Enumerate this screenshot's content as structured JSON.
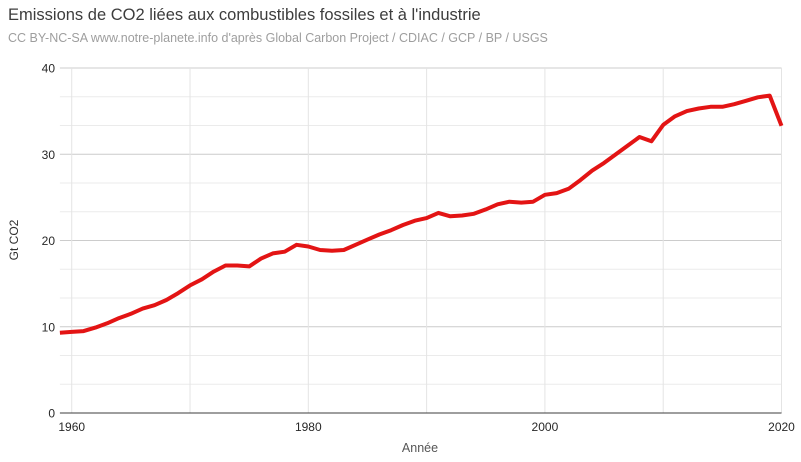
{
  "chart_data": {
    "type": "line",
    "title": "Emissions de CO2 liées aux combustibles fossiles et à l'industrie",
    "subtitle": "CC BY-NC-SA www.notre-planete.info d'après Global Carbon Project / CDIAC / GCP / BP / USGS",
    "xlabel": "Année",
    "ylabel": "Gt CO2",
    "xlim": [
      1959,
      2020
    ],
    "ylim": [
      0,
      40
    ],
    "yticks": [
      0,
      10,
      20,
      30,
      40
    ],
    "xticks": [
      1960,
      1980,
      2000,
      2020
    ],
    "x_gridlines": [
      1960,
      1970,
      1980,
      1990,
      2000,
      2010,
      2020
    ],
    "y_minor_divisions": 12,
    "grid": "on",
    "legend_position": "none",
    "colors": {
      "minor_gridline": "#ebebeb",
      "major_gridline": "#cccccc",
      "vertical_gridline": "#e4e4e4",
      "axis_baseline": "#3c3c3c",
      "tick_label": "#282828"
    },
    "series": [
      {
        "name": "Emissions de CO2 (Gt CO2)",
        "color": "#e31414",
        "stroke_width": 4,
        "x": [
          1959,
          1960,
          1961,
          1962,
          1963,
          1964,
          1965,
          1966,
          1967,
          1968,
          1969,
          1970,
          1971,
          1972,
          1973,
          1974,
          1975,
          1976,
          1977,
          1978,
          1979,
          1980,
          1981,
          1982,
          1983,
          1984,
          1985,
          1986,
          1987,
          1988,
          1989,
          1990,
          1991,
          1992,
          1993,
          1994,
          1995,
          1996,
          1997,
          1998,
          1999,
          2000,
          2001,
          2002,
          2003,
          2004,
          2005,
          2006,
          2007,
          2008,
          2009,
          2010,
          2011,
          2012,
          2013,
          2014,
          2015,
          2016,
          2017,
          2018,
          2019,
          2020
        ],
        "y": [
          9.3,
          9.4,
          9.5,
          9.9,
          10.4,
          11.0,
          11.5,
          12.1,
          12.5,
          13.1,
          13.9,
          14.8,
          15.5,
          16.4,
          17.1,
          17.1,
          17.0,
          17.9,
          18.5,
          18.7,
          19.5,
          19.3,
          18.9,
          18.8,
          18.9,
          19.5,
          20.1,
          20.7,
          21.2,
          21.8,
          22.3,
          22.6,
          23.2,
          22.8,
          22.9,
          23.1,
          23.6,
          24.2,
          24.5,
          24.4,
          24.5,
          25.3,
          25.5,
          26.0,
          27.0,
          28.1,
          29.0,
          30.0,
          31.0,
          32.0,
          31.5,
          33.4,
          34.4,
          35.0,
          35.3,
          35.5,
          35.5,
          35.8,
          36.2,
          36.6,
          36.8,
          33.3
        ]
      }
    ]
  }
}
